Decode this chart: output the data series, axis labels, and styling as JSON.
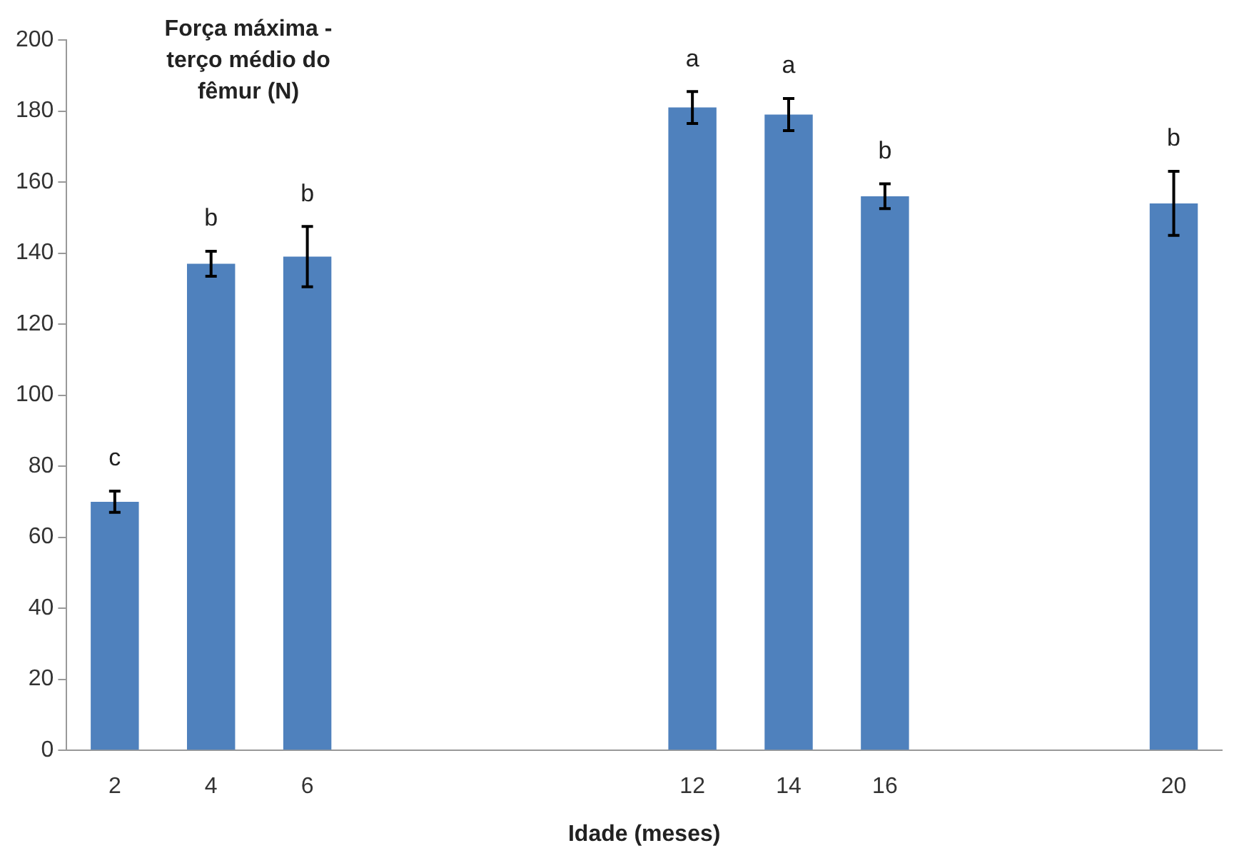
{
  "chart_data": {
    "type": "bar",
    "ylabel": "Força máxima - terço médio do fêmur (N)",
    "xlabel": "Idade (meses)",
    "categories": [
      "2",
      "4",
      "6",
      null,
      null,
      null,
      "12",
      "14",
      "16",
      null,
      null,
      "20"
    ],
    "series": [
      {
        "color": "#4f81bd",
        "values": [
          70,
          137,
          139,
          null,
          null,
          null,
          181,
          179,
          156,
          null,
          null,
          154
        ],
        "errors": [
          3,
          3.5,
          8.5,
          null,
          null,
          null,
          4.5,
          4.5,
          3.5,
          null,
          null,
          9
        ]
      }
    ],
    "ylim": [
      0,
      200
    ],
    "yticks": [
      0,
      20,
      40,
      60,
      80,
      100,
      120,
      140,
      160,
      180,
      200
    ],
    "grid": false,
    "legend": false,
    "annotations": [
      "c",
      "b",
      "b",
      "a",
      "a",
      "b",
      "b"
    ]
  }
}
